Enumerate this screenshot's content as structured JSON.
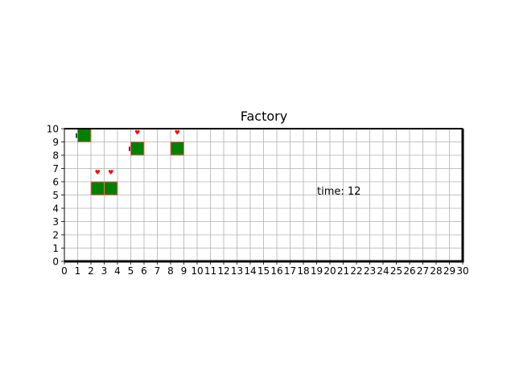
{
  "title": "Factory",
  "time_label": "time: 12",
  "grid": {
    "x_min": 0,
    "x_max": 30,
    "y_min": 0,
    "y_max": 10,
    "show_grid": true
  },
  "x_ticks": [
    "0",
    "1",
    "2",
    "3",
    "4",
    "5",
    "6",
    "7",
    "8",
    "9",
    "10",
    "11",
    "12",
    "13",
    "14",
    "15",
    "16",
    "17",
    "18",
    "19",
    "20",
    "21",
    "22",
    "23",
    "24",
    "25",
    "26",
    "27",
    "28",
    "29",
    "30"
  ],
  "y_ticks": [
    "0",
    "1",
    "2",
    "3",
    "4",
    "5",
    "6",
    "7",
    "8",
    "9",
    "10"
  ],
  "machines": [
    {
      "x": 1,
      "y": 9,
      "has_heart": false,
      "has_tag": true
    },
    {
      "x": 2,
      "y": 5,
      "has_heart": true,
      "has_tag": false
    },
    {
      "x": 3,
      "y": 5,
      "has_heart": true,
      "has_tag": false
    },
    {
      "x": 5,
      "y": 8,
      "has_heart": true,
      "has_tag": true
    },
    {
      "x": 8,
      "y": 8,
      "has_heart": true,
      "has_tag": false
    }
  ],
  "colors": {
    "machine": "#008000",
    "machine_edge": "#ff6666",
    "heart": "#ff0000",
    "grid": "#b0b0b0",
    "frame": "#000000"
  }
}
